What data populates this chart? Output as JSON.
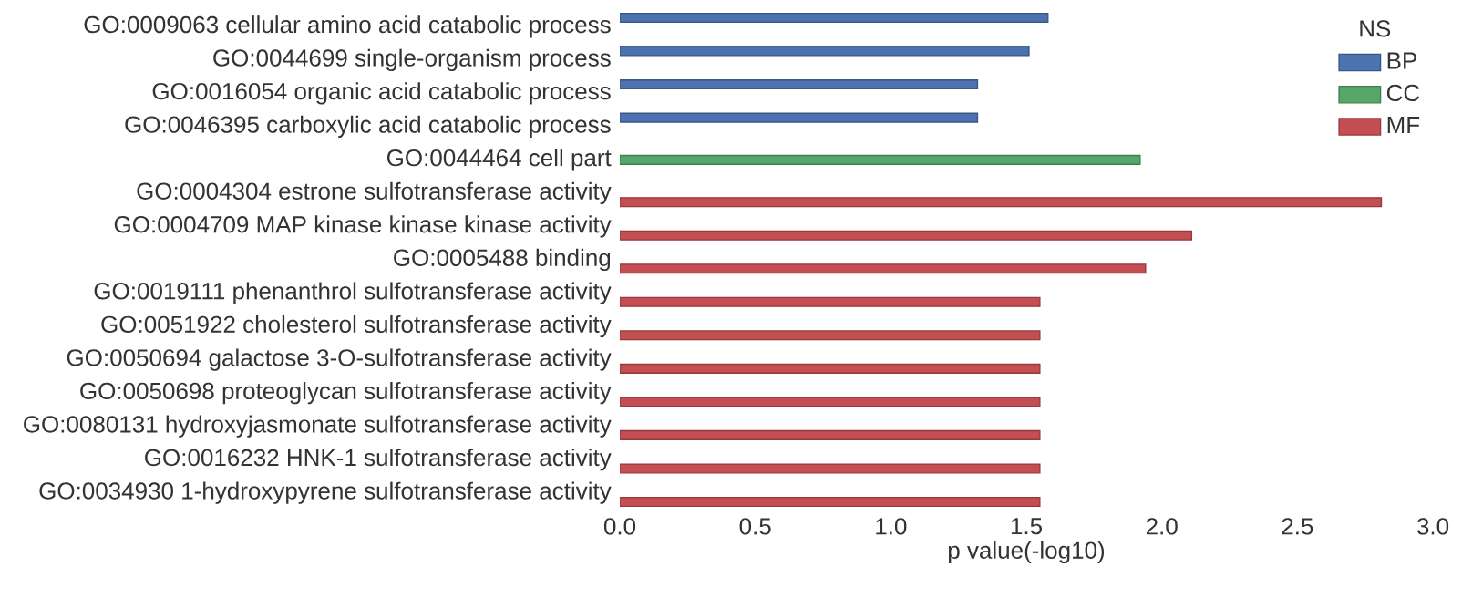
{
  "chart_data": {
    "type": "bar",
    "orientation": "horizontal",
    "xlabel": "p value(-log10)",
    "legend_title": "NS",
    "legend": "top right",
    "categories": [
      "GO:0009063 cellular amino acid catabolic process",
      "GO:0044699 single-organism process",
      "GO:0016054 organic acid catabolic process",
      "GO:0046395 carboxylic acid catabolic process",
      "GO:0044464 cell part",
      "GO:0004304 estrone sulfotransferase activity",
      "GO:0004709 MAP kinase kinase kinase activity",
      "GO:0005488 binding",
      "GO:0019111 phenanthrol sulfotransferase activity",
      "GO:0051922 cholesterol sulfotransferase activity",
      "GO:0050694 galactose 3-O-sulfotransferase activity",
      "GO:0050698 proteoglycan sulfotransferase activity",
      "GO:0080131 hydroxyjasmonate sulfotransferase activity",
      "GO:0016232 HNK-1 sulfotransferase activity",
      "GO:0034930 1-hydroxypyrene sulfotransferase activity"
    ],
    "series": [
      {
        "name": "BP",
        "color": "#4c72b0",
        "values": [
          1.58,
          1.51,
          1.32,
          1.32,
          null,
          null,
          null,
          null,
          null,
          null,
          null,
          null,
          null,
          null,
          null
        ]
      },
      {
        "name": "CC",
        "color": "#55a868",
        "values": [
          null,
          null,
          null,
          null,
          1.92,
          null,
          null,
          null,
          null,
          null,
          null,
          null,
          null,
          null,
          null
        ]
      },
      {
        "name": "MF",
        "color": "#c44e52",
        "values": [
          null,
          null,
          null,
          null,
          null,
          2.81,
          2.11,
          1.94,
          1.55,
          1.55,
          1.55,
          1.55,
          1.55,
          1.55,
          1.55
        ]
      }
    ],
    "xlim": [
      0,
      3
    ],
    "xticks": [
      {
        "value": 0,
        "label": "0.0"
      },
      0.5,
      {
        "value": 1,
        "label": "1.0"
      },
      1.5,
      {
        "value": 2,
        "label": "2.0"
      },
      2.5,
      {
        "value": 3,
        "label": "3.0"
      }
    ]
  }
}
